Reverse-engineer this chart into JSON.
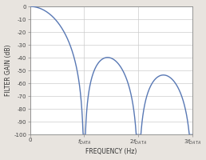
{
  "title": "",
  "xlabel": "FREQUENCY (Hz)",
  "ylabel": "FILTER GAIN (dB)",
  "xlim": [
    0,
    3
  ],
  "ylim": [
    -100,
    0
  ],
  "yticks": [
    0,
    -10,
    -20,
    -30,
    -40,
    -50,
    -60,
    -70,
    -80,
    -90,
    -100
  ],
  "xtick_positions": [
    0,
    1,
    2,
    3
  ],
  "line_color": "#5878b4",
  "plot_bg_color": "#ffffff",
  "fig_bg_color": "#e8e4df",
  "grid_color": "#cccccc",
  "line_width": 1.0,
  "clip_bottom": -100,
  "spine_color": "#888888",
  "tick_label_color": "#444444",
  "axis_label_color": "#333333"
}
